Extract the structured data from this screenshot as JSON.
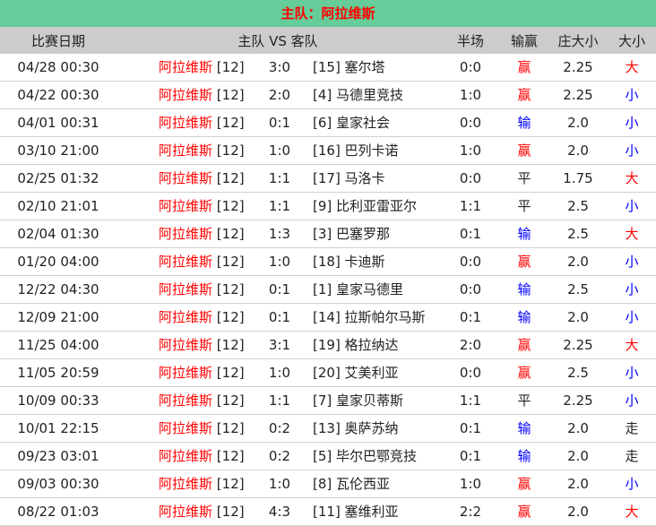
{
  "title": "主队：阿拉维斯",
  "headers": {
    "date": "比赛日期",
    "match": "主队 VS 客队",
    "half": "半场",
    "result": "输赢",
    "ou": "庄大小",
    "dx": "大小"
  },
  "colors": {
    "title_bg": "#66cc99",
    "header_bg": "#cccccc",
    "red": "#ff0000",
    "blue": "#0000ff"
  },
  "rows": [
    {
      "date": "04/28 00:30",
      "home": "阿拉维斯",
      "home_rank": "[12]",
      "score": "3:0",
      "away": "[15] 塞尔塔",
      "half": "0:0",
      "result": "赢",
      "ou": "2.25",
      "dx": "大"
    },
    {
      "date": "04/22 00:30",
      "home": "阿拉维斯",
      "home_rank": "[12]",
      "score": "2:0",
      "away": "[4] 马德里竞技",
      "half": "1:0",
      "result": "赢",
      "ou": "2.25",
      "dx": "小"
    },
    {
      "date": "04/01 00:31",
      "home": "阿拉维斯",
      "home_rank": "[12]",
      "score": "0:1",
      "away": "[6] 皇家社会",
      "half": "0:0",
      "result": "输",
      "ou": "2.0",
      "dx": "小"
    },
    {
      "date": "03/10 21:00",
      "home": "阿拉维斯",
      "home_rank": "[12]",
      "score": "1:0",
      "away": "[16] 巴列卡诺",
      "half": "1:0",
      "result": "赢",
      "ou": "2.0",
      "dx": "小"
    },
    {
      "date": "02/25 01:32",
      "home": "阿拉维斯",
      "home_rank": "[12]",
      "score": "1:1",
      "away": "[17] 马洛卡",
      "half": "0:0",
      "result": "平",
      "ou": "1.75",
      "dx": "大"
    },
    {
      "date": "02/10 21:01",
      "home": "阿拉维斯",
      "home_rank": "[12]",
      "score": "1:1",
      "away": "[9] 比利亚雷亚尔",
      "half": "1:1",
      "result": "平",
      "ou": "2.5",
      "dx": "小"
    },
    {
      "date": "02/04 01:30",
      "home": "阿拉维斯",
      "home_rank": "[12]",
      "score": "1:3",
      "away": "[3] 巴塞罗那",
      "half": "0:1",
      "result": "输",
      "ou": "2.5",
      "dx": "大"
    },
    {
      "date": "01/20 04:00",
      "home": "阿拉维斯",
      "home_rank": "[12]",
      "score": "1:0",
      "away": "[18] 卡迪斯",
      "half": "0:0",
      "result": "赢",
      "ou": "2.0",
      "dx": "小"
    },
    {
      "date": "12/22 04:30",
      "home": "阿拉维斯",
      "home_rank": "[12]",
      "score": "0:1",
      "away": "[1] 皇家马德里",
      "half": "0:0",
      "result": "输",
      "ou": "2.5",
      "dx": "小"
    },
    {
      "date": "12/09 21:00",
      "home": "阿拉维斯",
      "home_rank": "[12]",
      "score": "0:1",
      "away": "[14] 拉斯帕尔马斯",
      "half": "0:1",
      "result": "输",
      "ou": "2.0",
      "dx": "小"
    },
    {
      "date": "11/25 04:00",
      "home": "阿拉维斯",
      "home_rank": "[12]",
      "score": "3:1",
      "away": "[19] 格拉纳达",
      "half": "2:0",
      "result": "赢",
      "ou": "2.25",
      "dx": "大"
    },
    {
      "date": "11/05 20:59",
      "home": "阿拉维斯",
      "home_rank": "[12]",
      "score": "1:0",
      "away": "[20] 艾美利亚",
      "half": "0:0",
      "result": "赢",
      "ou": "2.5",
      "dx": "小"
    },
    {
      "date": "10/09 00:33",
      "home": "阿拉维斯",
      "home_rank": "[12]",
      "score": "1:1",
      "away": "[7] 皇家贝蒂斯",
      "half": "1:1",
      "result": "平",
      "ou": "2.25",
      "dx": "小"
    },
    {
      "date": "10/01 22:15",
      "home": "阿拉维斯",
      "home_rank": "[12]",
      "score": "0:2",
      "away": "[13] 奥萨苏纳",
      "half": "0:1",
      "result": "输",
      "ou": "2.0",
      "dx": "走"
    },
    {
      "date": "09/23 03:01",
      "home": "阿拉维斯",
      "home_rank": "[12]",
      "score": "0:2",
      "away": "[5] 毕尔巴鄂竞技",
      "half": "0:1",
      "result": "输",
      "ou": "2.0",
      "dx": "走"
    },
    {
      "date": "09/03 00:30",
      "home": "阿拉维斯",
      "home_rank": "[12]",
      "score": "1:0",
      "away": "[8] 瓦伦西亚",
      "half": "1:0",
      "result": "赢",
      "ou": "2.0",
      "dx": "小"
    },
    {
      "date": "08/22 01:03",
      "home": "阿拉维斯",
      "home_rank": "[12]",
      "score": "4:3",
      "away": "[11] 塞维利亚",
      "half": "2:2",
      "result": "赢",
      "ou": "2.0",
      "dx": "大"
    }
  ]
}
